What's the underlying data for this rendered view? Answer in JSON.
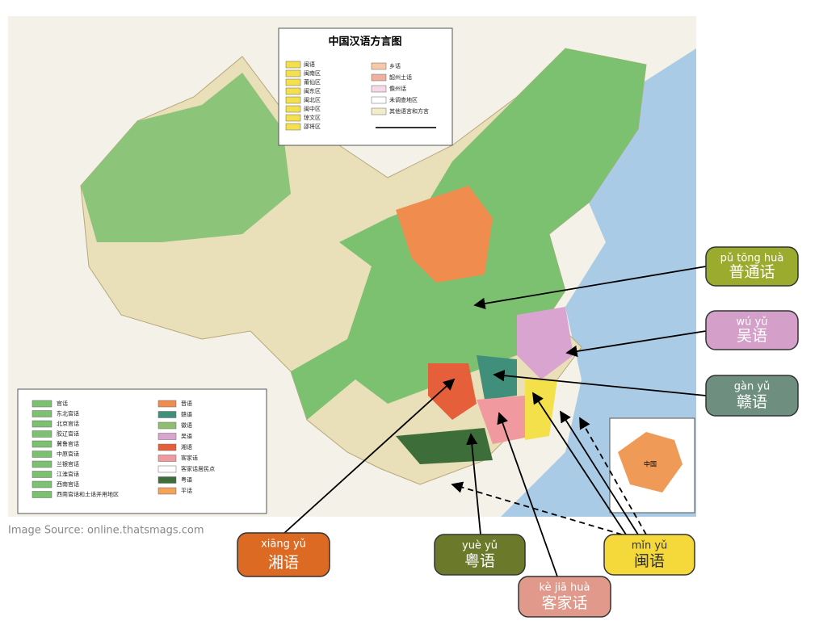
{
  "map": {
    "title": "中国汉语方言图",
    "legend_top_left": [
      "闽语",
      "闽南区",
      "莆仙区",
      "闽东区",
      "闽北区",
      "闽中区",
      "琼文区",
      "邵将区"
    ],
    "legend_top_right": [
      "乡话",
      "韶州土话",
      "儋州话",
      "未调查地区",
      "其他语言和方言"
    ],
    "legend_bottom_left": [
      "官话",
      "东北官话",
      "北京官话",
      "胶辽官话",
      "冀鲁官话",
      "中原官话",
      "兰银官话",
      "江淮官话",
      "西南官话",
      "西南官话和土话并用地区"
    ],
    "legend_bottom_right": [
      "晋语",
      "赣语",
      "徽语",
      "吴语",
      "湘语",
      "客家话",
      "客家话居民点",
      "粤语",
      "平话"
    ],
    "inset_label": "中国"
  },
  "callouts": [
    {
      "pinyin": "pǔ tōng huà",
      "hanzi": "普通话"
    },
    {
      "pinyin": "wú yǔ",
      "hanzi": "吴语"
    },
    {
      "pinyin": "gàn yǔ",
      "hanzi": "赣语"
    },
    {
      "pinyin": "xiāng yǔ",
      "hanzi": "湘语"
    },
    {
      "pinyin": "yuè yǔ",
      "hanzi": "粤语"
    },
    {
      "pinyin": "kè jiā huà",
      "hanzi": "客家话"
    },
    {
      "pinyin": "mǐn yǔ",
      "hanzi": "闽语"
    }
  ],
  "source": "Image Source: online.thatsmags.com"
}
